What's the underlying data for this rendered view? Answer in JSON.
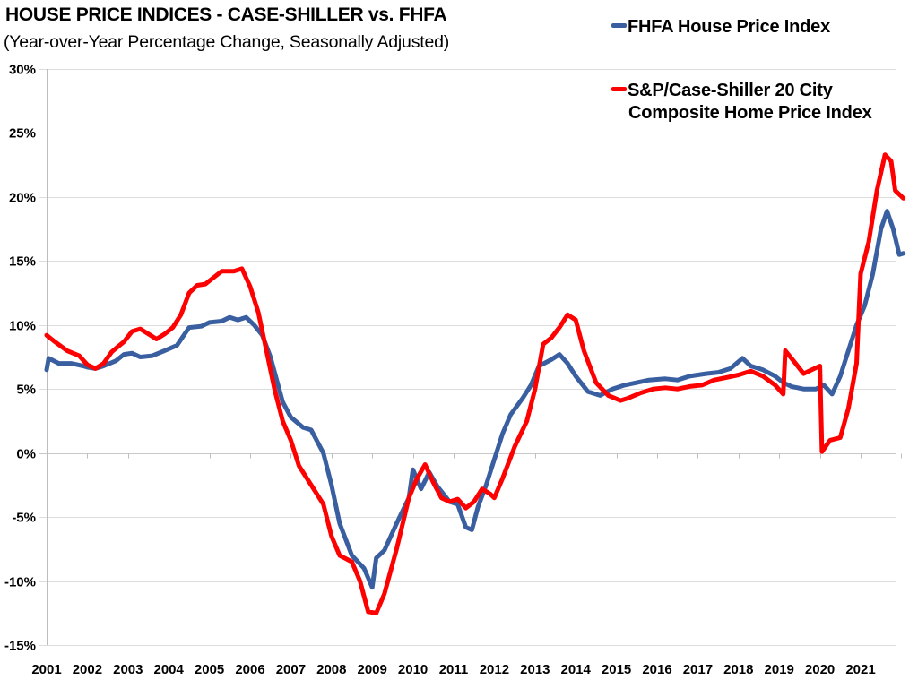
{
  "chart_data": {
    "type": "line",
    "title": "HOUSE PRICE INDICES - CASE-SHILLER vs. FHFA",
    "subtitle": "(Year-over-Year Percentage Change, Seasonally Adjusted)",
    "xlabel": "",
    "ylabel": "",
    "xlim": [
      2001,
      2022.05
    ],
    "ylim": [
      -15,
      30
    ],
    "grid": true,
    "legend_placement": "top-right",
    "x_ticks": [
      2001,
      2002,
      2003,
      2004,
      2005,
      2006,
      2007,
      2008,
      2009,
      2010,
      2011,
      2012,
      2013,
      2014,
      2015,
      2016,
      2017,
      2018,
      2019,
      2020,
      2021
    ],
    "x_tick_labels": [
      "2001",
      "2002",
      "2003",
      "2004",
      "2005",
      "2006",
      "2007",
      "2008",
      "2009",
      "2010",
      "2011",
      "2012",
      "2013",
      "2014",
      "2015",
      "2016",
      "2017",
      "2018",
      "2019",
      "2020",
      "2021"
    ],
    "y_ticks": [
      30,
      25,
      20,
      15,
      10,
      5,
      0,
      -5,
      -10,
      -15
    ],
    "y_tick_labels": [
      "30%",
      "25%",
      "20%",
      "15%",
      "10%",
      "5%",
      "0%",
      "-5%",
      "-10%",
      "-15%"
    ],
    "series": [
      {
        "name": "FHFA House Price Index",
        "color": "#3A5FA0",
        "x": [
          2001.0,
          2001.05,
          2001.3,
          2001.6,
          2001.9,
          2002.0,
          2002.2,
          2002.4,
          2002.7,
          2002.9,
          2003.1,
          2003.3,
          2003.6,
          2003.9,
          2004.2,
          2004.5,
          2004.8,
          2005.0,
          2005.3,
          2005.5,
          2005.7,
          2005.9,
          2006.1,
          2006.3,
          2006.5,
          2006.8,
          2007.0,
          2007.3,
          2007.5,
          2007.8,
          2008.0,
          2008.2,
          2008.5,
          2008.8,
          2009.0,
          2009.1,
          2009.3,
          2009.6,
          2009.9,
          2010.0,
          2010.2,
          2010.4,
          2010.6,
          2010.9,
          2011.1,
          2011.3,
          2011.45,
          2011.6,
          2011.8,
          2012.0,
          2012.2,
          2012.4,
          2012.7,
          2012.9,
          2013.1,
          2013.4,
          2013.6,
          2013.8,
          2014.0,
          2014.3,
          2014.6,
          2014.9,
          2015.2,
          2015.5,
          2015.8,
          2016.2,
          2016.5,
          2016.8,
          2017.2,
          2017.5,
          2017.8,
          2018.1,
          2018.3,
          2018.6,
          2018.9,
          2019.1,
          2019.3,
          2019.6,
          2019.9,
          2020.1,
          2020.3,
          2020.5,
          2020.7,
          2020.9,
          2021.1,
          2021.3,
          2021.5,
          2021.65,
          2021.8,
          2021.95,
          2022.05
        ],
        "values": [
          6.5,
          7.4,
          7.0,
          7.0,
          6.8,
          6.7,
          6.6,
          6.8,
          7.2,
          7.7,
          7.8,
          7.5,
          7.6,
          8.0,
          8.4,
          9.8,
          9.9,
          10.2,
          10.3,
          10.6,
          10.4,
          10.6,
          10.0,
          9.2,
          7.5,
          4.0,
          2.8,
          2.0,
          1.8,
          0.0,
          -2.5,
          -5.5,
          -8.0,
          -9.0,
          -10.5,
          -8.2,
          -7.6,
          -5.5,
          -3.5,
          -1.3,
          -2.8,
          -1.5,
          -2.6,
          -3.8,
          -4.0,
          -5.8,
          -6.0,
          -4.2,
          -2.5,
          -0.5,
          1.5,
          3.0,
          4.3,
          5.3,
          6.8,
          7.3,
          7.7,
          7.0,
          6.0,
          4.8,
          4.5,
          5.0,
          5.3,
          5.5,
          5.7,
          5.8,
          5.7,
          6.0,
          6.2,
          6.3,
          6.6,
          7.4,
          6.8,
          6.5,
          6.0,
          5.5,
          5.2,
          5.0,
          5.0,
          5.3,
          4.6,
          6.0,
          8.0,
          10.0,
          11.5,
          14.0,
          17.5,
          18.9,
          17.5,
          15.5,
          15.6
        ]
      },
      {
        "name": "S&P/Case-Shiller 20 City Composite Home Price Index",
        "color": "#FF0000",
        "x": [
          2001.0,
          2001.2,
          2001.5,
          2001.8,
          2002.0,
          2002.2,
          2002.4,
          2002.6,
          2002.9,
          2003.1,
          2003.3,
          2003.5,
          2003.7,
          2003.9,
          2004.1,
          2004.3,
          2004.5,
          2004.7,
          2004.9,
          2005.1,
          2005.3,
          2005.6,
          2005.8,
          2006.0,
          2006.2,
          2006.4,
          2006.6,
          2006.8,
          2007.0,
          2007.2,
          2007.5,
          2007.8,
          2008.0,
          2008.2,
          2008.5,
          2008.7,
          2008.9,
          2009.1,
          2009.3,
          2009.6,
          2009.9,
          2010.1,
          2010.3,
          2010.5,
          2010.7,
          2010.9,
          2011.1,
          2011.3,
          2011.5,
          2011.7,
          2011.9,
          2012.0,
          2012.2,
          2012.5,
          2012.8,
          2013.0,
          2013.2,
          2013.4,
          2013.6,
          2013.8,
          2014.0,
          2014.2,
          2014.5,
          2014.8,
          2015.1,
          2015.3,
          2015.6,
          2015.9,
          2016.2,
          2016.5,
          2016.8,
          2017.1,
          2017.4,
          2017.7,
          2018.0,
          2018.3,
          2018.6,
          2018.9,
          2019.1,
          2019.15,
          2019.4,
          2019.6,
          2019.8,
          2020.0,
          2020.05,
          2020.25,
          2020.5,
          2020.7,
          2020.9,
          2021.0,
          2021.2,
          2021.4,
          2021.6,
          2021.75,
          2021.85,
          2022.05
        ],
        "values": [
          9.2,
          8.7,
          8.0,
          7.6,
          6.9,
          6.6,
          7.0,
          7.9,
          8.7,
          9.5,
          9.7,
          9.3,
          8.9,
          9.3,
          9.8,
          10.8,
          12.5,
          13.1,
          13.2,
          13.7,
          14.2,
          14.2,
          14.4,
          13.0,
          11.0,
          8.0,
          5.0,
          2.5,
          1.0,
          -1.0,
          -2.5,
          -4.0,
          -6.5,
          -8.0,
          -8.5,
          -10.0,
          -12.4,
          -12.5,
          -11.0,
          -7.5,
          -3.5,
          -2.0,
          -0.9,
          -2.3,
          -3.5,
          -3.8,
          -3.6,
          -4.3,
          -3.8,
          -2.8,
          -3.2,
          -3.5,
          -2.0,
          0.5,
          2.5,
          5.0,
          8.5,
          9.0,
          9.8,
          10.8,
          10.4,
          8.0,
          5.5,
          4.5,
          4.1,
          4.3,
          4.7,
          5.0,
          5.1,
          5.0,
          5.2,
          5.3,
          5.7,
          5.9,
          6.1,
          6.4,
          6.0,
          5.3,
          4.6,
          8.0,
          7.0,
          6.2,
          6.5,
          6.8,
          0.1,
          1.0,
          1.2,
          3.5,
          7.0,
          14.0,
          16.5,
          20.5,
          23.3,
          22.8,
          20.5,
          19.9
        ]
      }
    ]
  },
  "legend": {
    "items": [
      {
        "label_lines": [
          "FHFA House Price Index"
        ],
        "color": "#3A5FA0"
      },
      {
        "label_lines": [
          "S&P/Case-Shiller 20 City",
          "Composite Home Price Index"
        ],
        "color": "#FF0000"
      }
    ]
  }
}
